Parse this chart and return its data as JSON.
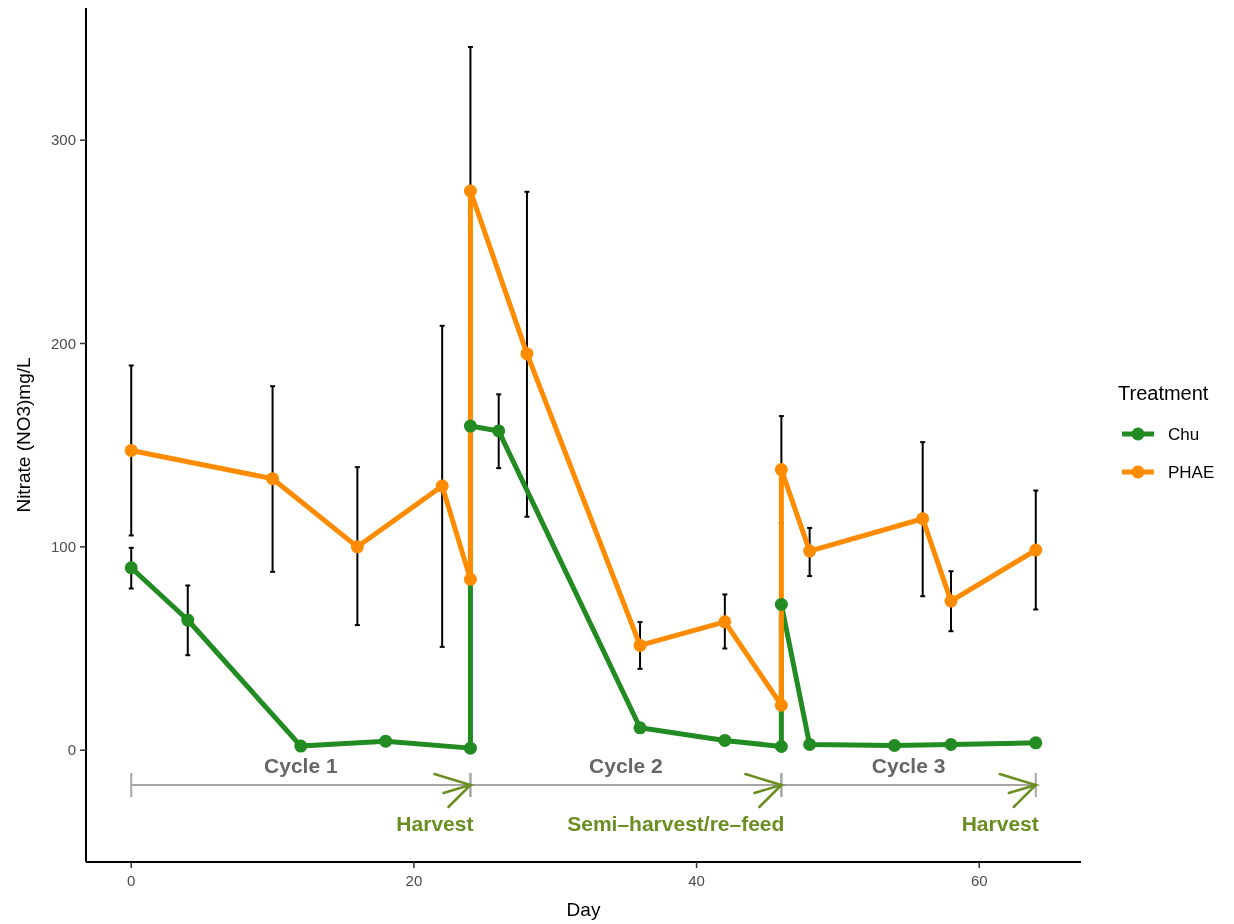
{
  "chart_data": {
    "type": "line",
    "xlabel": "Day",
    "ylabel": "Nitrate (NO3)mg/L",
    "legend_title": "Treatment",
    "legend": "right",
    "marker": "circle",
    "grid": false,
    "xlim": [
      -3.2,
      67.2
    ],
    "xticks": [
      0,
      20,
      40,
      60
    ],
    "ylim": [
      -55,
      365
    ],
    "yticks": [
      0,
      100,
      200,
      300
    ],
    "series": [
      {
        "name": "Chu",
        "color": "#228b22",
        "x": [
          0,
          4,
          12,
          18,
          24,
          24,
          26,
          36,
          42,
          46,
          46,
          48,
          54,
          58,
          64
        ],
        "values": [
          89.7,
          64,
          2,
          4.4,
          1,
          159.4,
          157,
          11,
          4.8,
          1.8,
          71.7,
          2.8,
          2.3,
          2.8,
          3.6
        ],
        "errors": [
          [
            79.5,
            99.5
          ],
          [
            46.7,
            81
          ],
          null,
          null,
          null,
          null,
          [
            138.7,
            175
          ],
          null,
          null,
          null,
          null,
          null,
          null,
          null,
          null
        ]
      },
      {
        "name": "PHAE",
        "color": "#ff8c00",
        "x": [
          0,
          10,
          16,
          22,
          24,
          24,
          28,
          36,
          42,
          46,
          46,
          48,
          56,
          58,
          64
        ],
        "values": [
          147.4,
          133.5,
          100,
          129.9,
          84,
          275,
          195,
          51.5,
          63.1,
          22.1,
          138,
          97.9,
          113.8,
          73.3,
          98.4
        ],
        "errors": [
          [
            105.6,
            189.2
          ],
          [
            87.7,
            179
          ],
          [
            61.5,
            139.2
          ],
          [
            50.8,
            208.7
          ],
          null,
          70.8,
          [
            114.8,
            274.6
          ],
          [
            40,
            63
          ],
          [
            50,
            76.6
          ],
          null,
          26.3,
          [
            85.6,
            109.3
          ],
          [
            75.7,
            151.5
          ],
          [
            58.5,
            88
          ],
          [
            69.2,
            127.7
          ]
        ]
      }
    ],
    "annotations": [
      "Cycle 1",
      "Harvest",
      "Cycle 2",
      "Semi–harvest/re–feed",
      "Cycle 3",
      "Harvest"
    ]
  }
}
